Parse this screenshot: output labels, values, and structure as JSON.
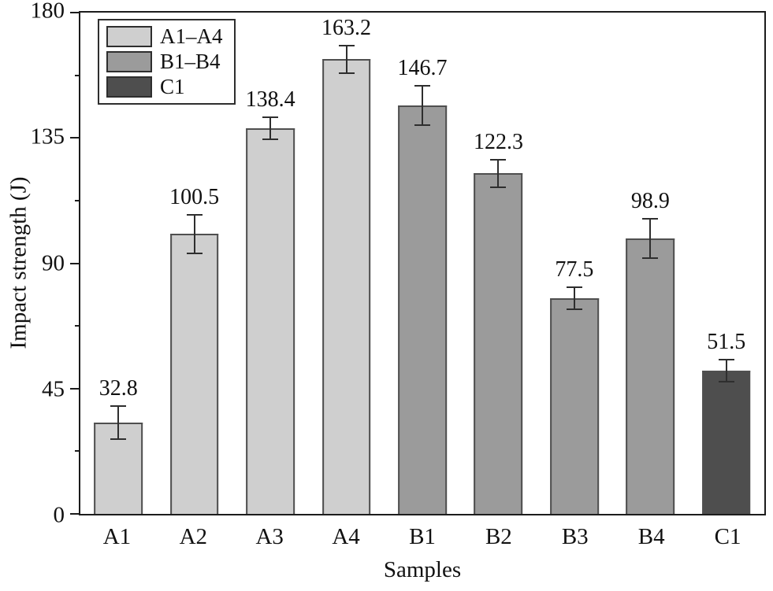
{
  "chart_data": {
    "type": "bar",
    "title": "",
    "xlabel": "Samples",
    "ylabel": "Impact strength (J)",
    "categories": [
      "A1",
      "A2",
      "A3",
      "A4",
      "B1",
      "B2",
      "B3",
      "B4",
      "C1"
    ],
    "values": [
      32.8,
      100.5,
      138.4,
      163.2,
      146.7,
      122.3,
      77.5,
      98.9,
      51.5
    ],
    "value_labels": [
      "32.8",
      "100.5",
      "138.4",
      "163.2",
      "146.7",
      "122.3",
      "77.5",
      "98.9",
      "51.5"
    ],
    "errors": [
      6,
      7,
      4,
      5,
      7,
      5,
      4,
      7,
      4
    ],
    "bar_colors": [
      "#cfcfcf",
      "#cfcfcf",
      "#cfcfcf",
      "#cfcfcf",
      "#9b9b9b",
      "#9b9b9b",
      "#9b9b9b",
      "#9b9b9b",
      "#4e4e4e"
    ],
    "ylim": [
      0,
      180
    ],
    "yticks": [
      0,
      45,
      90,
      135,
      180
    ],
    "yticks_minor": [
      22.5,
      67.5,
      112.5,
      157.5
    ],
    "grid": false,
    "legend_position": "top-left",
    "legend": [
      {
        "label": "A1–A4",
        "color": "#cfcfcf"
      },
      {
        "label": "B1–B4",
        "color": "#9b9b9b"
      },
      {
        "label": "C1",
        "color": "#4e4e4e"
      }
    ]
  }
}
